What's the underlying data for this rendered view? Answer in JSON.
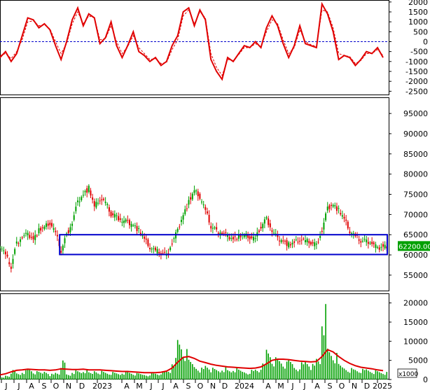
{
  "chart_data": [
    {
      "type": "line",
      "panel": "oscillator",
      "y_ticks": [
        2000,
        1500,
        1000,
        500,
        0,
        -500,
        -1000,
        -1500,
        -2000,
        -2500
      ],
      "ylim": [
        -2700,
        2100
      ],
      "zero_line": 0,
      "series": [
        {
          "style": "solid",
          "color": "#e00000",
          "values": [
            -800,
            -500,
            -1000,
            -600,
            300,
            1200,
            1100,
            700,
            900,
            600,
            -200,
            -900,
            0,
            1100,
            1700,
            800,
            1400,
            1200,
            -100,
            200,
            1000,
            -200,
            -800,
            -200,
            500,
            -500,
            -700,
            -1000,
            -800,
            -1200,
            -1000,
            -200,
            300,
            1500,
            1700,
            800,
            1600,
            1100,
            -900,
            -1500,
            -1900,
            -800,
            -1000,
            -600,
            -200,
            -300,
            0,
            -300,
            700,
            1300,
            800,
            -100,
            -800,
            -200,
            800,
            -100,
            -200,
            -300,
            1900,
            1400,
            500,
            -900,
            -700,
            -800,
            -1200,
            -900,
            -500,
            -600,
            -300,
            -800
          ]
        },
        {
          "style": "dashed",
          "color": "#e00000",
          "values": [
            -700,
            -600,
            -850,
            -500,
            100,
            1000,
            1050,
            800,
            850,
            650,
            0,
            -600,
            -100,
            900,
            1500,
            900,
            1300,
            1200,
            100,
            150,
            800,
            0,
            -600,
            -250,
            300,
            -300,
            -600,
            -900,
            -850,
            -1100,
            -1050,
            -400,
            100,
            1300,
            1600,
            900,
            1500,
            1200,
            -600,
            -1300,
            -1700,
            -900,
            -950,
            -650,
            -300,
            -300,
            -100,
            -250,
            500,
            1100,
            900,
            100,
            -600,
            -300,
            600,
            0,
            -150,
            -250,
            1600,
            1500,
            700,
            -600,
            -700,
            -750,
            -1100,
            -950,
            -600,
            -600,
            -400,
            -700
          ]
        }
      ]
    },
    {
      "type": "candlestick",
      "panel": "price",
      "y_ticks": [
        95000,
        90000,
        85000,
        80000,
        75000,
        70000,
        65000,
        60000,
        55000
      ],
      "ylim": [
        51000,
        99000
      ],
      "close_values": [
        62500,
        60000,
        57000,
        63000,
        64500,
        65000,
        64000,
        66000,
        67000,
        68000,
        65500,
        61000,
        65000,
        68000,
        73000,
        75000,
        76500,
        72000,
        74000,
        73000,
        70000,
        69500,
        68500,
        68000,
        67500,
        66000,
        64000,
        62000,
        61000,
        60500,
        60000,
        63000,
        66000,
        70000,
        73000,
        76000,
        74500,
        71000,
        67000,
        66000,
        65500,
        64500,
        64000,
        64500,
        65000,
        64500,
        64000,
        67000,
        69000,
        66000,
        64000,
        63500,
        62500,
        63000,
        64000,
        63500,
        63000,
        62500,
        66000,
        71500,
        72500,
        71000,
        69000,
        66000,
        64500,
        63500,
        63500,
        63000,
        61500,
        62200
      ],
      "current_price_label": "62200.00",
      "box": {
        "y_top": 65000,
        "y_bottom": 60100
      }
    },
    {
      "type": "bar",
      "panel": "volume",
      "y_ticks": [
        20000,
        15000,
        10000,
        5000,
        0
      ],
      "ylim": [
        0,
        22500
      ],
      "unit_label": "x1000",
      "bar_color": "#00a000",
      "ma_color": "#e00000",
      "volumes": [
        600,
        1200,
        2500,
        1800,
        2600,
        3000,
        2200,
        2000,
        2600,
        1600,
        2100,
        5000,
        1500,
        2600,
        2300,
        2700,
        1900,
        2800,
        2400,
        2100,
        2000,
        1800,
        2300,
        2100,
        1700,
        1600,
        1500,
        1900,
        1800,
        2200,
        2600,
        6000,
        11000,
        8000,
        5200,
        4200,
        3300,
        4300,
        3100,
        2800,
        3500,
        2600,
        3100,
        2600,
        2400,
        2700,
        3100,
        4200,
        8800,
        6200,
        5800,
        4700,
        5200,
        3900,
        4800,
        5600,
        4100,
        6100,
        21000,
        8600,
        7000,
        4100,
        3700,
        3200,
        3000,
        2800,
        3000,
        2600,
        2300,
        2000
      ],
      "ma_values": [
        1200,
        1500,
        2000,
        2400,
        2500,
        2700,
        2600,
        2500,
        2500,
        2400,
        2500,
        2800,
        2700,
        2600,
        2600,
        2700,
        2500,
        2500,
        2500,
        2400,
        2300,
        2200,
        2100,
        2100,
        2000,
        1900,
        1800,
        1800,
        1800,
        1900,
        2200,
        3000,
        4500,
        5800,
        6000,
        5500,
        4800,
        4400,
        4000,
        3700,
        3500,
        3300,
        3200,
        3100,
        3000,
        2900,
        3000,
        3300,
        4100,
        5000,
        5300,
        5300,
        5200,
        5000,
        4800,
        4700,
        4600,
        4700,
        6000,
        7800,
        7200,
        6000,
        5000,
        4200,
        3600,
        3200,
        3000,
        2800,
        2500,
        2300
      ]
    }
  ],
  "x_axis": {
    "labels": [
      "J",
      "J",
      "A",
      "S",
      "O",
      "N",
      "D",
      "2023",
      "A",
      "M",
      "J",
      "J",
      "A",
      "S",
      "O",
      "N",
      "D",
      "2024",
      "A",
      "M",
      "J",
      "J",
      "A",
      "S",
      "O",
      "N",
      "D",
      "2025"
    ]
  }
}
